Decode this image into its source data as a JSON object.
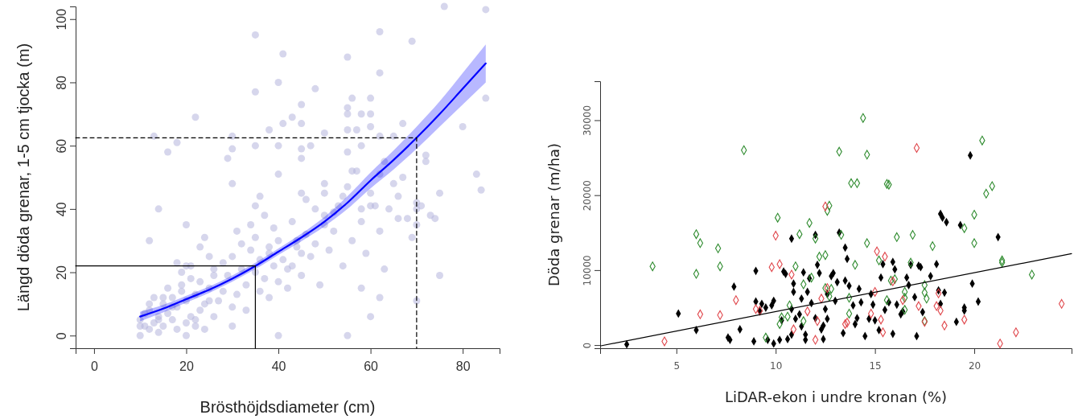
{
  "chart_data": [
    {
      "type": "scatter",
      "xlabel": "Brösthöjdsdiameter (cm)",
      "ylabel": "Längd döda grenar, 1-5 cm tjocka (m)",
      "xlim": [
        -4,
        88
      ],
      "ylim": [
        -4,
        104
      ],
      "xticks": [
        0,
        20,
        40,
        60,
        80
      ],
      "yticks": [
        0,
        20,
        40,
        60,
        80,
        100
      ],
      "grid": false,
      "series": [
        {
          "marker": "circle",
          "color": "#b4b4dc",
          "x": [
            76,
            85,
            62,
            35,
            69,
            41,
            55,
            40,
            35,
            62,
            48,
            45,
            56,
            60,
            55,
            55,
            58,
            60,
            43,
            22,
            67,
            41,
            45,
            60,
            80,
            38,
            55,
            57,
            13,
            30,
            50,
            62,
            65,
            16,
            18,
            35,
            40,
            45,
            47,
            55,
            58,
            29,
            45,
            72,
            72,
            85,
            83,
            84,
            75,
            75,
            70,
            70,
            69,
            70,
            71,
            73,
            74,
            70,
            63,
            62,
            60,
            58,
            55,
            40,
            20,
            10,
            10,
            11,
            12,
            12,
            13,
            13,
            14,
            14,
            15,
            15,
            16,
            16,
            17,
            17,
            18,
            18,
            19,
            19,
            20,
            20,
            21,
            21,
            22,
            22,
            23,
            23,
            24,
            24,
            25,
            25,
            26,
            26,
            27,
            28,
            29,
            30,
            30,
            30,
            31,
            31,
            32,
            33,
            33,
            34,
            35,
            35,
            36,
            36,
            37,
            37,
            38,
            38,
            39,
            39,
            40,
            40,
            41,
            42,
            43,
            43,
            44,
            45,
            45,
            46,
            47,
            48,
            48,
            49,
            50,
            50,
            51,
            52,
            53,
            54,
            55,
            56,
            57,
            58,
            59,
            60,
            61,
            62,
            63,
            64,
            65,
            66,
            67,
            10,
            11,
            12,
            14,
            15,
            17,
            19,
            20,
            21,
            23,
            24,
            26,
            28,
            30,
            32,
            34,
            36,
            38,
            40,
            42,
            44,
            46,
            50,
            52,
            54,
            56,
            58,
            60,
            62,
            66,
            68,
            30,
            25,
            20,
            35,
            45,
            50,
            18,
            14,
            12,
            22
          ],
          "values": [
            104,
            103,
            96,
            95,
            93,
            89,
            88,
            80,
            77,
            83,
            78,
            73,
            75,
            75,
            72,
            70,
            70,
            70,
            69,
            69,
            67,
            67,
            67,
            66,
            66,
            65,
            65,
            65,
            63,
            63,
            64,
            63,
            63,
            58,
            61,
            60,
            60,
            59,
            60,
            58,
            60,
            56,
            56,
            57,
            55,
            75,
            51,
            46,
            45,
            19,
            42,
            40,
            31,
            35,
            41,
            38,
            37,
            11,
            21,
            12,
            6,
            15,
            0,
            0,
            0,
            0,
            5,
            3,
            8,
            2,
            12,
            4,
            6,
            1,
            10,
            3,
            7,
            15,
            5,
            12,
            9,
            2,
            14,
            20,
            4,
            11,
            6,
            22,
            13,
            3,
            8,
            17,
            10,
            2,
            15,
            25,
            6,
            21,
            11,
            14,
            19,
            25,
            9,
            3,
            13,
            33,
            21,
            16,
            8,
            27,
            20,
            31,
            14,
            24,
            18,
            38,
            12,
            28,
            22,
            34,
            17,
            30,
            24,
            15,
            36,
            22,
            28,
            45,
            19,
            32,
            25,
            40,
            29,
            16,
            35,
            48,
            27,
            33,
            41,
            22,
            47,
            30,
            52,
            36,
            26,
            45,
            41,
            33,
            55,
            40,
            48,
            37,
            50,
            3,
            7,
            10,
            5,
            12,
            9,
            16,
            22,
            18,
            28,
            31,
            19,
            23,
            48,
            29,
            35,
            44,
            26,
            51,
            21,
            30,
            43,
            38,
            39,
            44,
            52,
            40,
            41,
            51,
            44,
            37,
            59,
            11,
            35,
            41,
            26,
            45,
            23,
            40,
            30,
            5
          ]
        },
        {
          "type": "line",
          "color": "#0000ff",
          "x": [
            10,
            15,
            20,
            25,
            30,
            35,
            40,
            45,
            50,
            55,
            60,
            65,
            70,
            75,
            80,
            85
          ],
          "values": [
            6,
            8.5,
            11.5,
            14.5,
            18,
            22,
            26.5,
            31,
            36,
            42,
            49,
            55.5,
            62.5,
            70,
            78,
            86
          ],
          "lower": [
            4.5,
            7.3,
            10.4,
            13.5,
            17,
            21,
            25.5,
            29.8,
            34.5,
            40,
            46.5,
            52.5,
            59,
            66,
            73,
            80
          ],
          "upper": [
            7.5,
            9.7,
            12.6,
            15.5,
            19,
            23,
            27.5,
            32.2,
            37.5,
            44,
            51.5,
            58.5,
            66,
            74,
            83,
            92
          ]
        },
        {
          "type": "line",
          "color": "#000000",
          "line_style": "solid",
          "x": [
            -4,
            35,
            35
          ],
          "values": [
            22,
            22,
            -4
          ]
        },
        {
          "type": "line",
          "color": "#000000",
          "line_style": "dashed",
          "x": [
            -4,
            70,
            70
          ],
          "values": [
            62.5,
            62.5,
            -4
          ]
        }
      ]
    },
    {
      "type": "scatter",
      "xlabel": "LiDAR-ekon i undre kronan (%)",
      "ylabel": "Döda grenar (m/ha)",
      "xlim": [
        1.16,
        24.9
      ],
      "ylim": [
        -420,
        35200
      ],
      "xticks": [
        5,
        10,
        15,
        20
      ],
      "yticks": [
        0,
        10000,
        20000,
        30000
      ],
      "grid": false,
      "series": [
        {
          "marker": "diamond",
          "color": "#000000",
          "x": [
            2.5,
            5.1,
            6.0,
            7.6,
            7.7,
            7.9,
            8.2,
            8.9,
            9.0,
            9.0,
            9.2,
            9.3,
            9.5,
            9.6,
            9.8,
            9.9,
            9.9,
            10.2,
            10.3,
            10.4,
            10.5,
            10.6,
            10.8,
            10.8,
            10.8,
            10.9,
            10.9,
            11.0,
            11.2,
            11.3,
            11.3,
            11.4,
            11.5,
            11.5,
            11.6,
            11.7,
            11.8,
            12.0,
            12.0,
            12.1,
            12.2,
            12.3,
            12.4,
            12.4,
            12.5,
            12.6,
            12.6,
            12.8,
            12.9,
            13.0,
            13.1,
            13.2,
            13.4,
            13.5,
            13.5,
            13.6,
            13.7,
            13.9,
            14.0,
            14.1,
            14.2,
            14.3,
            14.5,
            14.7,
            14.8,
            14.9,
            15.0,
            15.2,
            15.3,
            15.4,
            15.5,
            15.7,
            15.9,
            15.9,
            16.0,
            16.1,
            16.3,
            16.4,
            16.6,
            16.7,
            16.8,
            17.0,
            17.1,
            17.2,
            17.3,
            17.4,
            17.8,
            18.1,
            18.2,
            18.3,
            18.4,
            18.5,
            18.3,
            18.6,
            19.1,
            19.3,
            19.5,
            19.5,
            19.8,
            19.9,
            20.2,
            21.2
          ],
          "values": [
            100,
            4200,
            2000,
            1000,
            700,
            7800,
            2100,
            500,
            5800,
            9900,
            4500,
            5500,
            5000,
            700,
            5300,
            200,
            5900,
            700,
            3300,
            9800,
            9500,
            800,
            4800,
            14200,
            1400,
            8200,
            7100,
            3500,
            4100,
            2500,
            6200,
            9700,
            700,
            1400,
            7100,
            8900,
            5600,
            14700,
            3600,
            10700,
            9600,
            2100,
            800,
            2600,
            4800,
            6800,
            3500,
            9200,
            9600,
            5900,
            8400,
            15000,
            1600,
            13000,
            8600,
            11500,
            7900,
            5300,
            2800,
            3600,
            7500,
            5700,
            1200,
            3500,
            6800,
            5400,
            3300,
            2000,
            9000,
            10800,
            4700,
            5700,
            11100,
            1500,
            10100,
            5400,
            4100,
            4500,
            9000,
            8000,
            10700,
            6400,
            1200,
            10600,
            10400,
            4400,
            9200,
            10800,
            7300,
            17500,
            17000,
            7000,
            5500,
            16400,
            3100,
            16000,
            5000,
            4600,
            25300,
            8200,
            5800,
            14400
          ]
        },
        {
          "marker": "diamond-open",
          "color": "#2e8b2e",
          "x": [
            3.8,
            8.4,
            6.0,
            6.2,
            6.0,
            7.1,
            7.2,
            10.1,
            9.5,
            10.2,
            10.3,
            10.6,
            10.7,
            11.0,
            11.2,
            11.4,
            11.7,
            11.8,
            11.4,
            12.0,
            12.2,
            12.5,
            12.7,
            12.6,
            12.5,
            12.7,
            12.8,
            13.2,
            13.3,
            13.8,
            14.1,
            14.4,
            14.6,
            14.6,
            13.7,
            14.0,
            13.7,
            15.2,
            15.6,
            15.7,
            16.1,
            15.8,
            15.6,
            16.0,
            16.5,
            16.5,
            16.5,
            16.9,
            16.8,
            17.5,
            17.5,
            17.6,
            17.5,
            17.9,
            19.5,
            20.0,
            20.0,
            20.4,
            20.6,
            20.9,
            21.4,
            21.4,
            22.9
          ],
          "values": [
            10500,
            26000,
            14800,
            13600,
            9500,
            12900,
            10500,
            17000,
            1000,
            2800,
            3700,
            3800,
            5300,
            10500,
            14800,
            8100,
            16300,
            9000,
            3200,
            14200,
            11800,
            12000,
            18600,
            17900,
            7600,
            6500,
            7500,
            25800,
            14700,
            21600,
            21600,
            30300,
            25400,
            13600,
            4200,
            10700,
            6300,
            11300,
            21500,
            21400,
            14400,
            8600,
            6000,
            8800,
            6300,
            7100,
            4700,
            14700,
            11000,
            8000,
            7000,
            6200,
            3200,
            13200,
            15600,
            13600,
            17400,
            27300,
            20200,
            21200,
            11300,
            11000,
            9400
          ]
        },
        {
          "marker": "diamond-open",
          "color": "#e0474c",
          "x": [
            4.4,
            6.2,
            7.2,
            8.0,
            9.0,
            9.2,
            9.8,
            10.0,
            10.2,
            10.8,
            10.9,
            11.6,
            12.0,
            12.1,
            12.3,
            12.5,
            12.6,
            13.5,
            13.6,
            14.8,
            15.0,
            15.1,
            15.3,
            15.5,
            15.4,
            15.9,
            16.4,
            17.1,
            17.2,
            17.5,
            18.1,
            18.2,
            18.3,
            18.5,
            19.5,
            21.3,
            22.1,
            24.4
          ],
          "values": [
            500,
            4100,
            4000,
            6000,
            4800,
            4600,
            10400,
            14600,
            10800,
            9400,
            2100,
            4500,
            700,
            3200,
            6200,
            18500,
            7600,
            2800,
            3000,
            4200,
            7100,
            12500,
            3400,
            11800,
            1700,
            8500,
            6000,
            26300,
            5200,
            3100,
            5200,
            6900,
            4600,
            2600,
            3400,
            200,
            1700,
            5500
          ]
        },
        {
          "type": "line",
          "color": "#000000",
          "line_style": "solid",
          "x": [
            1.2,
            24.9
          ],
          "values": [
            -100,
            12200
          ]
        }
      ]
    }
  ]
}
